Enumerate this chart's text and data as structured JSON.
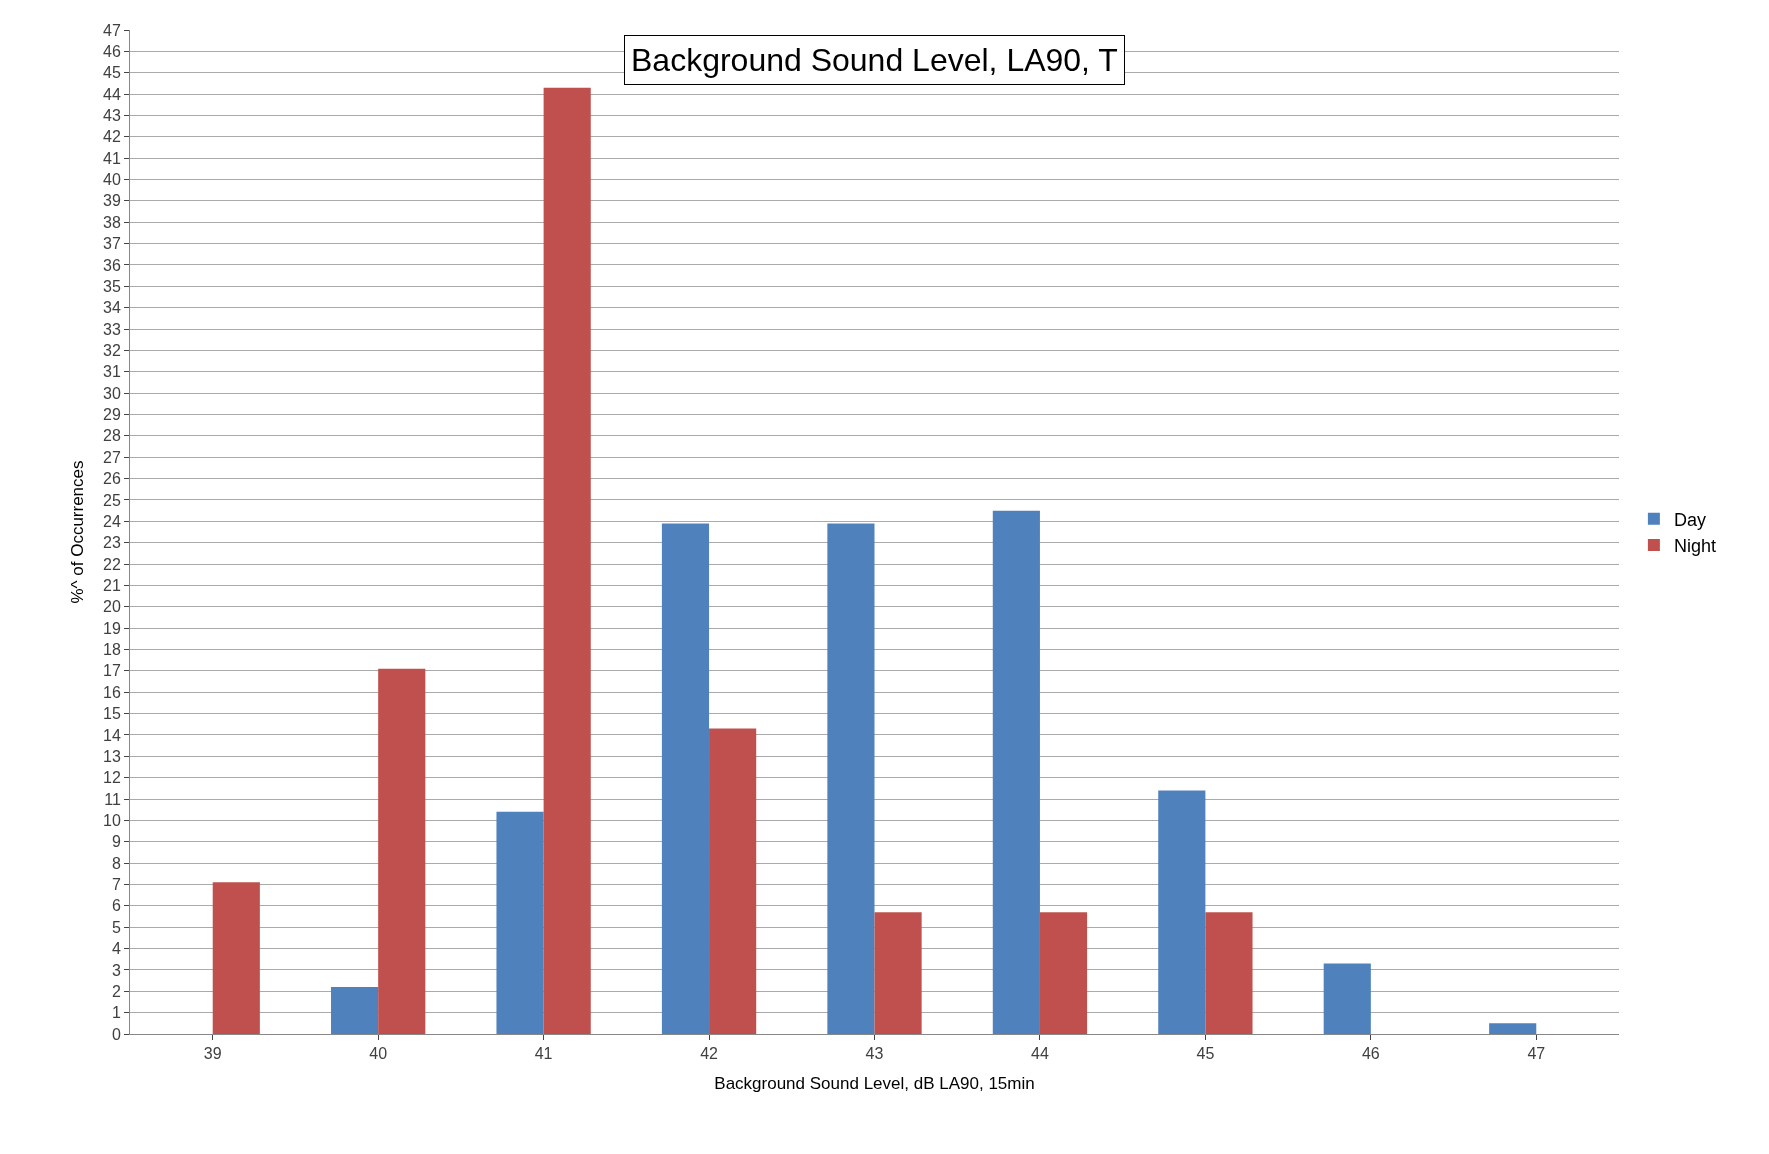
{
  "chart_data": {
    "type": "bar",
    "title": "Background Sound Level, LA90, T",
    "xlabel": "Background Sound Level, dB LA90, 15min",
    "ylabel": "%^ of Occurrences",
    "categories": [
      "39",
      "40",
      "41",
      "42",
      "43",
      "44",
      "45",
      "46",
      "47"
    ],
    "series": [
      {
        "name": "Day",
        "color": "#4f81bd",
        "values": [
          null,
          2.2,
          10.4,
          23.9,
          23.9,
          24.5,
          11.4,
          3.3,
          0.5
        ]
      },
      {
        "name": "Night",
        "color": "#c0504d",
        "values": [
          7.1,
          17.1,
          44.3,
          14.3,
          5.7,
          5.7,
          5.7,
          null,
          null
        ]
      }
    ],
    "ylim": [
      0,
      47
    ],
    "yticks": [
      0,
      1,
      2,
      3,
      4,
      5,
      6,
      7,
      8,
      9,
      10,
      11,
      12,
      13,
      14,
      15,
      16,
      17,
      18,
      19,
      20,
      21,
      22,
      23,
      24,
      25,
      26,
      27,
      28,
      29,
      30,
      31,
      32,
      33,
      34,
      35,
      36,
      37,
      38,
      39,
      40,
      41,
      42,
      43,
      44,
      45,
      46,
      47
    ],
    "grid": "y",
    "legend": "right"
  }
}
